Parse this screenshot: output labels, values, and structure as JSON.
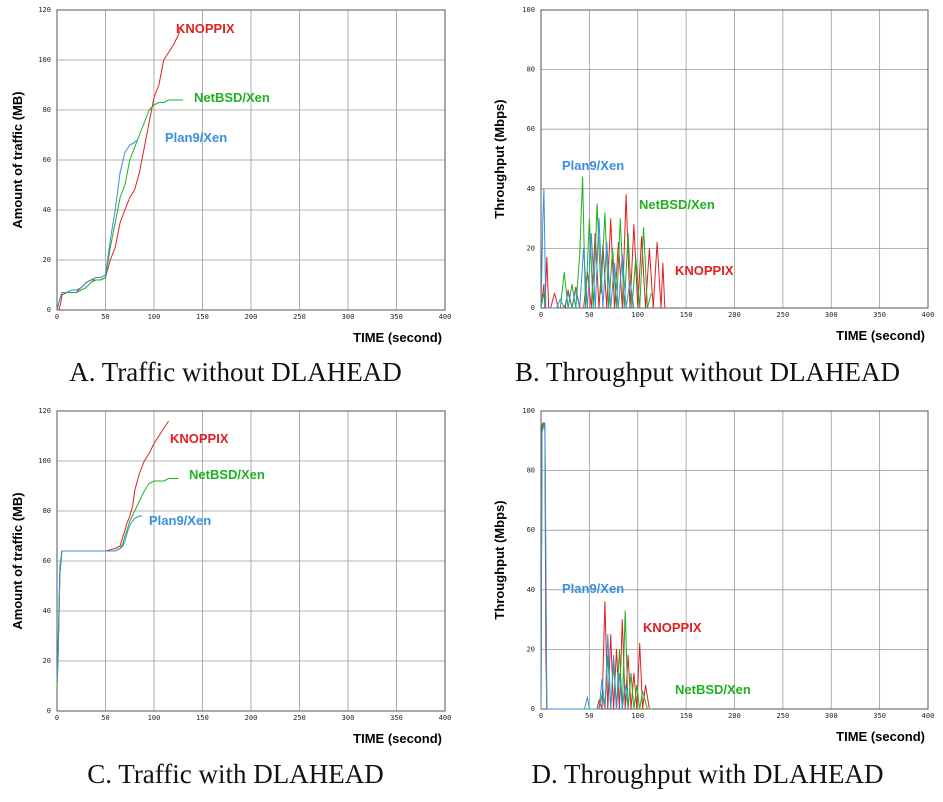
{
  "chart_data": [
    {
      "type": "line",
      "caption": "A. Traffic without DLAHEAD",
      "xlabel": "TIME (second)",
      "ylabel": "Amount  of traffic (MB)",
      "xlim": [
        0,
        400
      ],
      "ylim": [
        0,
        120
      ],
      "xticks": [
        0,
        50,
        100,
        150,
        200,
        250,
        300,
        350,
        400
      ],
      "yticks": [
        0,
        20,
        40,
        60,
        80,
        100,
        120
      ],
      "grid": true,
      "series": [
        {
          "name": "KNOPPIX",
          "color": "#e02020",
          "x": [
            0,
            2,
            4,
            5,
            10,
            15,
            20,
            22,
            25,
            28,
            30,
            35,
            40,
            45,
            50,
            55,
            60,
            65,
            70,
            75,
            80,
            85,
            90,
            95,
            100,
            105,
            110,
            115,
            120,
            125,
            128
          ],
          "y": [
            0,
            0,
            3,
            6,
            7,
            7,
            7,
            8,
            9,
            10,
            11,
            12,
            12,
            12,
            13,
            20,
            25,
            35,
            40,
            45,
            48,
            55,
            65,
            75,
            85,
            90,
            100,
            103,
            106,
            110,
            113
          ]
        },
        {
          "name": "NetBSD/Xen",
          "color": "#20b020",
          "x": [
            0,
            2,
            5,
            10,
            15,
            20,
            25,
            30,
            35,
            40,
            45,
            50,
            55,
            60,
            65,
            70,
            75,
            80,
            85,
            90,
            95,
            100,
            105,
            110,
            115,
            120,
            125,
            130
          ],
          "y": [
            0,
            3,
            7,
            7,
            7,
            7,
            8,
            9,
            11,
            12,
            12,
            13,
            25,
            35,
            45,
            50,
            60,
            65,
            70,
            75,
            80,
            82,
            83,
            83,
            84,
            84,
            84,
            84
          ]
        },
        {
          "name": "Plan9/Xen",
          "color": "#3a8ee0",
          "x": [
            0,
            2,
            5,
            10,
            15,
            20,
            25,
            30,
            35,
            40,
            45,
            50,
            55,
            60,
            65,
            70,
            75,
            80,
            82
          ],
          "y": [
            0,
            3,
            7,
            7,
            8,
            8,
            9,
            11,
            12,
            13,
            13,
            14,
            28,
            40,
            55,
            63,
            66,
            67,
            68
          ]
        }
      ]
    },
    {
      "type": "line",
      "caption": "B. Throughput without DLAHEAD",
      "xlabel": "TIME (second)",
      "ylabel": "Throughput  (Mbps)",
      "xlim": [
        0,
        400
      ],
      "ylim": [
        0,
        100
      ],
      "xticks": [
        0,
        50,
        100,
        150,
        200,
        250,
        300,
        350,
        400
      ],
      "yticks": [
        0,
        20,
        40,
        60,
        80,
        100
      ],
      "grid": true,
      "series": [
        {
          "name": "KNOPPIX",
          "color": "#e02020",
          "x": [
            0,
            3,
            4,
            6,
            8,
            10,
            14,
            18,
            22,
            25,
            28,
            32,
            36,
            40,
            44,
            48,
            52,
            56,
            60,
            64,
            68,
            72,
            76,
            80,
            84,
            88,
            92,
            96,
            100,
            104,
            108,
            112,
            116,
            120,
            124,
            126,
            128
          ],
          "y": [
            0,
            8,
            0,
            17,
            0,
            0,
            5,
            0,
            0,
            0,
            6,
            0,
            7,
            0,
            0,
            12,
            0,
            25,
            0,
            21,
            0,
            30,
            0,
            22,
            0,
            38,
            0,
            28,
            0,
            24,
            0,
            20,
            0,
            22,
            0,
            15,
            0
          ]
        },
        {
          "name": "NetBSD/Xen",
          "color": "#20b020",
          "x": [
            0,
            3,
            5,
            8,
            12,
            16,
            20,
            24,
            28,
            32,
            36,
            40,
            43,
            46,
            50,
            54,
            58,
            62,
            66,
            70,
            74,
            78,
            82,
            86,
            90,
            94,
            98,
            102,
            106,
            110,
            114
          ],
          "y": [
            0,
            5,
            0,
            0,
            0,
            0,
            0,
            12,
            0,
            8,
            0,
            18,
            44,
            0,
            30,
            0,
            35,
            5,
            32,
            0,
            20,
            0,
            30,
            0,
            25,
            0,
            17,
            0,
            27,
            0,
            5
          ]
        },
        {
          "name": "Plan9/Xen",
          "color": "#3a8ee0",
          "x": [
            0,
            2,
            3,
            5,
            8,
            12,
            16,
            20,
            24,
            28,
            32,
            36,
            40,
            44,
            48,
            52,
            56,
            60,
            64,
            68,
            72,
            76,
            80,
            84,
            88,
            92,
            96,
            100
          ],
          "y": [
            0,
            30,
            40,
            0,
            0,
            0,
            0,
            3,
            0,
            5,
            0,
            6,
            0,
            20,
            0,
            25,
            0,
            30,
            0,
            22,
            0,
            15,
            0,
            18,
            0,
            9,
            0,
            0
          ]
        }
      ],
      "annotations": [
        {
          "text": "Plan9/Xen"
        },
        {
          "text": "NetBSD/Xen"
        },
        {
          "text": "KNOPPIX"
        }
      ]
    },
    {
      "type": "line",
      "caption": "C. Traffic with DLAHEAD",
      "xlabel": "TIME (second)",
      "ylabel": "Amount  of traffic (MB)",
      "xlim": [
        0,
        400
      ],
      "ylim": [
        0,
        120
      ],
      "xticks": [
        0,
        50,
        100,
        150,
        200,
        250,
        300,
        350,
        400
      ],
      "yticks": [
        0,
        20,
        40,
        60,
        80,
        100,
        120
      ],
      "grid": true,
      "series": [
        {
          "name": "KNOPPIX",
          "color": "#e02020",
          "x": [
            0,
            1,
            3,
            5,
            10,
            20,
            30,
            40,
            50,
            60,
            65,
            68,
            70,
            72,
            75,
            78,
            80,
            85,
            90,
            95,
            100,
            105,
            110,
            115
          ],
          "y": [
            10,
            20,
            55,
            64,
            64,
            64,
            64,
            64,
            64,
            65,
            66,
            70,
            72,
            75,
            78,
            82,
            88,
            95,
            100,
            103,
            107,
            110,
            113,
            116
          ]
        },
        {
          "name": "NetBSD/Xen",
          "color": "#20b020",
          "x": [
            0,
            1,
            3,
            5,
            10,
            20,
            30,
            40,
            50,
            60,
            65,
            68,
            70,
            72,
            75,
            80,
            85,
            90,
            95,
            100,
            105,
            110,
            115,
            120,
            125
          ],
          "y": [
            10,
            20,
            55,
            64,
            64,
            64,
            64,
            64,
            64,
            64,
            65,
            67,
            70,
            72,
            76,
            80,
            84,
            88,
            91,
            92,
            92,
            92,
            93,
            93,
            93
          ]
        },
        {
          "name": "Plan9/Xen",
          "color": "#3a8ee0",
          "x": [
            0,
            1,
            3,
            5,
            10,
            20,
            30,
            40,
            50,
            60,
            65,
            68,
            70,
            73,
            76,
            80,
            85,
            88
          ],
          "y": [
            12,
            25,
            58,
            64,
            64,
            64,
            64,
            64,
            64,
            64,
            65,
            66,
            68,
            72,
            75,
            77,
            78,
            78
          ]
        }
      ]
    },
    {
      "type": "line",
      "caption": "D. Throughput with DLAHEAD",
      "xlabel": "TIME (second)",
      "ylabel": "Throughput  (Mbps)",
      "xlim": [
        0,
        400
      ],
      "ylim": [
        0,
        100
      ],
      "xticks": [
        0,
        50,
        100,
        150,
        200,
        250,
        300,
        350,
        400
      ],
      "yticks": [
        0,
        20,
        40,
        60,
        80,
        100
      ],
      "grid": true,
      "series": [
        {
          "name": "KNOPPIX",
          "color": "#e02020",
          "x": [
            0,
            1,
            2,
            3,
            4,
            5,
            6,
            7,
            8,
            50,
            55,
            58,
            60,
            63,
            66,
            69,
            72,
            75,
            78,
            81,
            84,
            87,
            90,
            93,
            96,
            99,
            102,
            105,
            108,
            112
          ],
          "y": [
            0,
            95,
            96,
            95,
            94,
            20,
            0,
            0,
            0,
            0,
            0,
            0,
            3,
            0,
            36,
            0,
            25,
            0,
            20,
            0,
            30,
            0,
            18,
            0,
            12,
            0,
            22,
            0,
            8,
            0
          ]
        },
        {
          "name": "NetBSD/Xen",
          "color": "#20b020",
          "x": [
            0,
            1,
            2,
            3,
            4,
            5,
            6,
            7,
            8,
            50,
            60,
            63,
            66,
            69,
            72,
            75,
            78,
            81,
            84,
            87,
            90,
            93,
            96,
            99,
            102,
            105,
            110,
            115
          ],
          "y": [
            0,
            94,
            95,
            96,
            95,
            50,
            0,
            0,
            0,
            0,
            0,
            5,
            0,
            18,
            0,
            15,
            0,
            20,
            0,
            33,
            0,
            12,
            0,
            8,
            0,
            6,
            0,
            0
          ]
        },
        {
          "name": "Plan9/Xen",
          "color": "#3a8ee0",
          "x": [
            0,
            1,
            2,
            3,
            4,
            5,
            6,
            7,
            8,
            45,
            48,
            50,
            55,
            60,
            63,
            66,
            69,
            72,
            75,
            78,
            81,
            84,
            87,
            90
          ],
          "y": [
            0,
            93,
            94,
            95,
            96,
            52,
            0,
            0,
            0,
            0,
            4,
            0,
            0,
            0,
            10,
            0,
            25,
            0,
            18,
            0,
            12,
            0,
            8,
            0
          ]
        }
      ]
    }
  ]
}
